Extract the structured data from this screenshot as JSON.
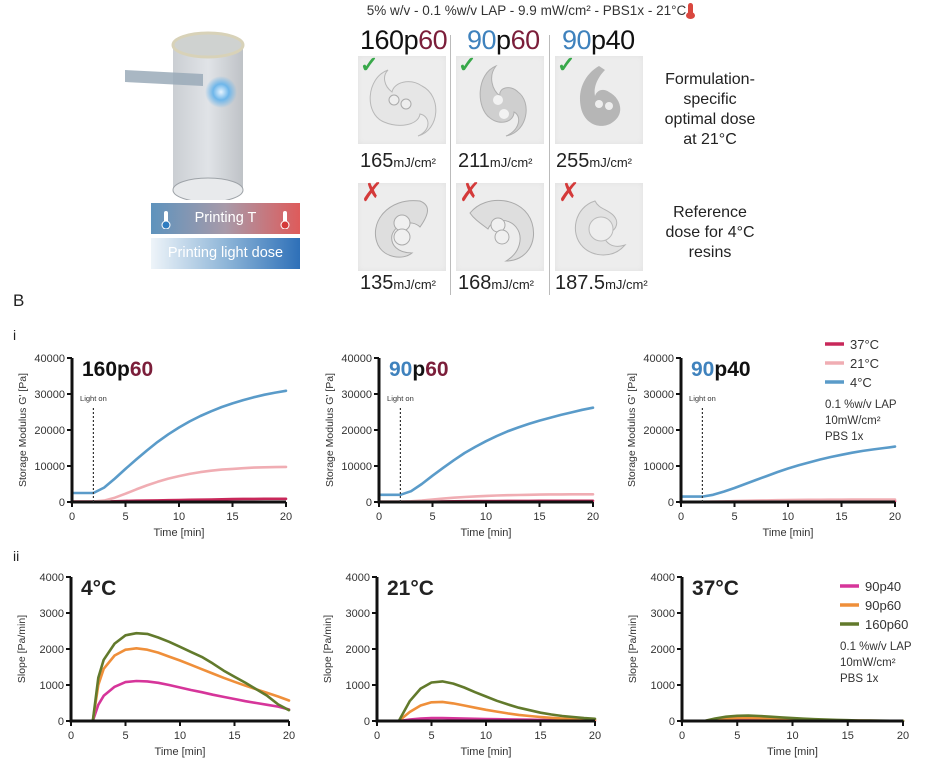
{
  "panelA": {
    "header": "5% w/v - 0.1 %w/v LAP - 9.9 mW/cm² - PBS1x - 21°C",
    "thermometer_icon": "thermometer-hot-icon",
    "formulations": [
      {
        "parts": [
          {
            "text": "160",
            "color": "black"
          },
          {
            "text": "p",
            "color": "black"
          },
          {
            "text": "60",
            "color": "maroon"
          }
        ]
      },
      {
        "parts": [
          {
            "text": "90",
            "color": "blue"
          },
          {
            "text": "p",
            "color": "black"
          },
          {
            "text": "60",
            "color": "maroon"
          }
        ]
      },
      {
        "parts": [
          {
            "text": "90",
            "color": "blue"
          },
          {
            "text": "p",
            "color": "black"
          },
          {
            "text": "40",
            "color": "black"
          }
        ]
      }
    ],
    "row_optimal": {
      "note": "Formulation-specific optimal dose at 21°C",
      "note_lines": [
        "Formulation-",
        "specific",
        "optimal dose",
        "at 21°C"
      ],
      "mark": "✓",
      "doses": [
        {
          "value": "165",
          "unit": "mJ/cm²"
        },
        {
          "value": "211",
          "unit": "mJ/cm²"
        },
        {
          "value": "255",
          "unit": "mJ/cm²"
        }
      ]
    },
    "row_reference": {
      "note": "Reference dose for 4°C resins",
      "note_lines": [
        "Reference",
        "dose for 4°C",
        "resins"
      ],
      "mark": "✗",
      "doses": [
        {
          "value": "135",
          "unit": "mJ/cm²"
        },
        {
          "value": "168",
          "unit": "mJ/cm²"
        },
        {
          "value": "187.5",
          "unit": "mJ/cm²"
        }
      ]
    },
    "bars": {
      "temperature": "Printing T",
      "light_dose": "Printing light dose"
    }
  },
  "panelB": {
    "label": "B",
    "sub_i": "i",
    "sub_ii": "ii"
  },
  "colors": {
    "c37": "#c8285a",
    "c21": "#f0adb3",
    "c4": "#5a9bc9",
    "p90p40": "#d6359a",
    "p90p60": "#ef8f3a",
    "p160p60": "#627a2c",
    "blue_text": "#3f82bd",
    "maroon_text": "#7b1e3a"
  },
  "chart_data": [
    {
      "type": "line",
      "title": "160p60",
      "title_parts": [
        {
          "text": "160",
          "color": "black"
        },
        {
          "text": "p",
          "color": "black"
        },
        {
          "text": "60",
          "color": "maroon"
        }
      ],
      "xlabel": "Time [min]",
      "ylabel": "Storage Modulus G' [Pa]",
      "xlim": [
        0,
        20
      ],
      "ylim": [
        0,
        40000
      ],
      "xticks": [
        0,
        5,
        10,
        15,
        20
      ],
      "yticks": [
        0,
        10000,
        20000,
        30000,
        40000
      ],
      "annotation": {
        "text": "Light on",
        "x": 2
      },
      "x": [
        0,
        2,
        3,
        4,
        5,
        6,
        7,
        8,
        9,
        10,
        11,
        12,
        13,
        14,
        15,
        16,
        17,
        18,
        19,
        20
      ],
      "series": [
        {
          "name": "37°C",
          "color_key": "c37",
          "values": [
            100,
            100,
            150,
            200,
            300,
            350,
            400,
            450,
            500,
            550,
            600,
            650,
            700,
            750,
            800,
            850,
            850,
            900,
            900,
            900
          ]
        },
        {
          "name": "21°C",
          "color_key": "c21",
          "values": [
            100,
            100,
            400,
            1200,
            2300,
            3500,
            4600,
            5600,
            6500,
            7200,
            7800,
            8300,
            8700,
            9000,
            9200,
            9400,
            9550,
            9650,
            9700,
            9750
          ]
        },
        {
          "name": "4°C",
          "color_key": "c4",
          "values": [
            2500,
            2500,
            4000,
            6500,
            9200,
            11800,
            14300,
            16700,
            18800,
            20700,
            22400,
            23900,
            25200,
            26400,
            27400,
            28300,
            29100,
            29800,
            30400,
            30900
          ]
        }
      ]
    },
    {
      "type": "line",
      "title": "90p60",
      "title_parts": [
        {
          "text": "90",
          "color": "blue"
        },
        {
          "text": "p",
          "color": "black"
        },
        {
          "text": "60",
          "color": "maroon"
        }
      ],
      "xlabel": "Time [min]",
      "ylabel": "Storage Modulus G' [Pa]",
      "xlim": [
        0,
        20
      ],
      "ylim": [
        0,
        40000
      ],
      "xticks": [
        0,
        5,
        10,
        15,
        20
      ],
      "yticks": [
        0,
        10000,
        20000,
        30000,
        40000
      ],
      "annotation": {
        "text": "Light on",
        "x": 2
      },
      "x": [
        0,
        2,
        3,
        4,
        5,
        6,
        7,
        8,
        9,
        10,
        11,
        12,
        13,
        14,
        15,
        16,
        17,
        18,
        19,
        20
      ],
      "series": [
        {
          "name": "37°C",
          "color_key": "c37",
          "values": [
            50,
            50,
            80,
            100,
            150,
            180,
            200,
            220,
            240,
            260,
            280,
            300,
            300,
            300,
            320,
            320,
            330,
            330,
            330,
            330
          ]
        },
        {
          "name": "21°C",
          "color_key": "c21",
          "values": [
            100,
            100,
            200,
            400,
            700,
            950,
            1200,
            1400,
            1550,
            1700,
            1800,
            1900,
            1950,
            2000,
            2050,
            2100,
            2100,
            2150,
            2150,
            2150
          ]
        },
        {
          "name": "4°C",
          "color_key": "c4",
          "values": [
            2000,
            2000,
            3000,
            5000,
            7300,
            9500,
            11600,
            13600,
            15300,
            16900,
            18300,
            19600,
            20700,
            21700,
            22600,
            23400,
            24200,
            24900,
            25600,
            26200
          ]
        }
      ]
    },
    {
      "type": "line",
      "title": "90p40",
      "title_parts": [
        {
          "text": "90",
          "color": "blue"
        },
        {
          "text": "p",
          "color": "black"
        },
        {
          "text": "40",
          "color": "black"
        }
      ],
      "xlabel": "Time [min]",
      "ylabel": "Storage Modulus G' [Pa]",
      "xlim": [
        0,
        20
      ],
      "ylim": [
        0,
        40000
      ],
      "xticks": [
        0,
        5,
        10,
        15,
        20
      ],
      "yticks": [
        0,
        10000,
        20000,
        30000,
        40000
      ],
      "annotation": {
        "text": "Light on",
        "x": 2
      },
      "legend": {
        "position": "top-right",
        "entries": [
          "37°C",
          "21°C",
          "4°C"
        ],
        "note_lines": [
          "0.1 %w/v LAP",
          "10mW/cm²",
          "PBS 1x"
        ]
      },
      "x": [
        0,
        2,
        3,
        4,
        5,
        6,
        7,
        8,
        9,
        10,
        11,
        12,
        13,
        14,
        15,
        16,
        17,
        18,
        19,
        20
      ],
      "series": [
        {
          "name": "37°C",
          "color_key": "c37",
          "values": [
            50,
            50,
            60,
            80,
            100,
            120,
            140,
            160,
            180,
            200,
            210,
            220,
            230,
            240,
            250,
            250,
            260,
            260,
            260,
            260
          ]
        },
        {
          "name": "21°C",
          "color_key": "c21",
          "values": [
            50,
            50,
            100,
            150,
            250,
            320,
            400,
            450,
            500,
            550,
            580,
            600,
            620,
            640,
            650,
            660,
            670,
            680,
            690,
            700
          ]
        },
        {
          "name": "4°C",
          "color_key": "c4",
          "values": [
            1500,
            1500,
            2000,
            2900,
            3900,
            5000,
            6100,
            7200,
            8300,
            9300,
            10200,
            11000,
            11800,
            12500,
            13100,
            13700,
            14200,
            14600,
            15000,
            15400
          ]
        }
      ]
    },
    {
      "type": "line",
      "title": "4°C",
      "xlabel": "Time [min]",
      "ylabel": "Slope [Pa/min]",
      "xlim": [
        0,
        20
      ],
      "ylim": [
        0,
        4000
      ],
      "xticks": [
        0,
        5,
        10,
        15,
        20
      ],
      "yticks": [
        0,
        1000,
        2000,
        3000,
        4000
      ],
      "x": [
        2,
        2.5,
        3,
        4,
        5,
        6,
        7,
        8,
        9,
        10,
        11,
        12,
        13,
        14,
        15,
        16,
        17,
        18,
        19,
        20
      ],
      "series": [
        {
          "name": "90p40",
          "color_key": "p90p40",
          "values": [
            0,
            450,
            700,
            950,
            1080,
            1110,
            1100,
            1060,
            1000,
            930,
            860,
            800,
            730,
            670,
            610,
            550,
            500,
            450,
            400,
            320
          ]
        },
        {
          "name": "90p60",
          "color_key": "p90p60",
          "values": [
            0,
            1000,
            1450,
            1820,
            1980,
            2020,
            1980,
            1900,
            1790,
            1680,
            1560,
            1440,
            1320,
            1200,
            1090,
            980,
            880,
            780,
            680,
            570
          ]
        },
        {
          "name": "160p60",
          "color_key": "p160p60",
          "values": [
            0,
            1200,
            1700,
            2150,
            2380,
            2440,
            2420,
            2320,
            2200,
            2060,
            1920,
            1780,
            1600,
            1400,
            1230,
            1060,
            880,
            700,
            460,
            300
          ]
        }
      ]
    },
    {
      "type": "line",
      "title": "21°C",
      "xlabel": "Time [min]",
      "ylabel": "Slope [Pa/min]",
      "xlim": [
        0,
        20
      ],
      "ylim": [
        0,
        4000
      ],
      "xticks": [
        0,
        5,
        10,
        15,
        20
      ],
      "yticks": [
        0,
        1000,
        2000,
        3000,
        4000
      ],
      "x": [
        2,
        3,
        4,
        5,
        6,
        7,
        8,
        9,
        10,
        11,
        12,
        13,
        14,
        15,
        16,
        17,
        18,
        19,
        20
      ],
      "series": [
        {
          "name": "90p40",
          "color_key": "p90p40",
          "values": [
            0,
            40,
            70,
            80,
            80,
            75,
            70,
            60,
            55,
            50,
            45,
            40,
            35,
            30,
            25,
            20,
            18,
            15,
            10
          ]
        },
        {
          "name": "90p60",
          "color_key": "p90p60",
          "values": [
            0,
            250,
            430,
            520,
            530,
            490,
            430,
            370,
            310,
            260,
            210,
            170,
            140,
            110,
            90,
            70,
            55,
            45,
            35
          ]
        },
        {
          "name": "160p60",
          "color_key": "p160p60",
          "values": [
            0,
            550,
            900,
            1070,
            1100,
            1040,
            930,
            800,
            680,
            560,
            460,
            370,
            300,
            230,
            180,
            140,
            110,
            80,
            60
          ]
        }
      ]
    },
    {
      "type": "line",
      "title": "37°C",
      "xlabel": "Time [min]",
      "ylabel": "Slope [Pa/min]",
      "xlim": [
        0,
        20
      ],
      "ylim": [
        0,
        4000
      ],
      "xticks": [
        0,
        5,
        10,
        15,
        20
      ],
      "yticks": [
        0,
        1000,
        2000,
        3000,
        4000
      ],
      "legend": {
        "position": "top-right",
        "entries": [
          "90p40",
          "90p60",
          "160p60"
        ],
        "note_lines": [
          "0.1 %w/v LAP",
          "10mW/cm²",
          "PBS 1x"
        ]
      },
      "x": [
        2,
        3,
        4,
        5,
        6,
        7,
        8,
        9,
        10,
        11,
        12,
        13,
        14,
        15,
        16,
        17,
        18,
        19,
        20
      ],
      "series": [
        {
          "name": "90p40",
          "color_key": "p90p40",
          "values": [
            0,
            10,
            15,
            20,
            20,
            20,
            18,
            15,
            12,
            10,
            8,
            6,
            5,
            4,
            3,
            2,
            2,
            1,
            1
          ]
        },
        {
          "name": "90p60",
          "color_key": "p90p60",
          "values": [
            0,
            40,
            70,
            85,
            85,
            80,
            70,
            60,
            50,
            40,
            30,
            25,
            20,
            15,
            10,
            8,
            6,
            4,
            3
          ]
        },
        {
          "name": "160p60",
          "color_key": "p160p60",
          "values": [
            0,
            70,
            120,
            145,
            150,
            140,
            120,
            100,
            80,
            65,
            50,
            40,
            30,
            22,
            15,
            10,
            8,
            5,
            3
          ]
        }
      ]
    }
  ]
}
